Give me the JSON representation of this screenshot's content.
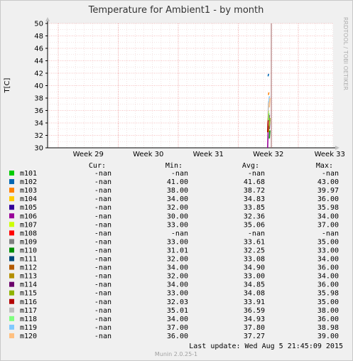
{
  "chart_data": {
    "type": "line",
    "title": "Temperature for Ambient1 - by month",
    "ylabel": "T[C]",
    "xlabel": "",
    "ylim": [
      30,
      50
    ],
    "yticks": [
      "30",
      "32",
      "34",
      "36",
      "38",
      "40",
      "42",
      "44",
      "46",
      "48",
      "50"
    ],
    "x_ticks": [
      "Week 29",
      "Week 30",
      "Week 31",
      "Week 32",
      "Week 33"
    ],
    "grid": true,
    "current_marker": "now",
    "watermark": "RRDTOOL / TOBI OETIKER",
    "legend_headers": [
      "Cur:",
      "Min:",
      "Avg:",
      "Max:"
    ],
    "series": [
      {
        "name": "m101",
        "color": "#00cc00",
        "cur": "-nan",
        "min": "-nan",
        "avg": "-nan",
        "max": "-nan",
        "values": []
      },
      {
        "name": "m102",
        "color": "#0066b3",
        "cur": "-nan",
        "min": "41.00",
        "avg": "41.68",
        "max": "43.00",
        "values": [
          41.5,
          41.7,
          41.9
        ]
      },
      {
        "name": "m103",
        "color": "#ff8000",
        "cur": "-nan",
        "min": "38.00",
        "avg": "38.72",
        "max": "39.97",
        "values": [
          38.5,
          38.8,
          38.9
        ]
      },
      {
        "name": "m104",
        "color": "#ffcc00",
        "cur": "-nan",
        "min": "34.00",
        "avg": "34.83",
        "max": "36.00",
        "values": [
          34.5,
          34.8,
          35.0
        ]
      },
      {
        "name": "m105",
        "color": "#330099",
        "cur": "-nan",
        "min": "32.00",
        "avg": "33.85",
        "max": "35.98",
        "values": [
          33.0,
          34.0,
          34.5
        ]
      },
      {
        "name": "m106",
        "color": "#990099",
        "cur": "-nan",
        "min": "30.00",
        "avg": "32.36",
        "max": "34.00",
        "values": [
          30.0,
          31.5,
          33.0
        ]
      },
      {
        "name": "m107",
        "color": "#ccff00",
        "cur": "-nan",
        "min": "33.00",
        "avg": "35.06",
        "max": "37.00",
        "values": [
          34.0,
          35.0,
          36.0
        ]
      },
      {
        "name": "m108",
        "color": "#ff0000",
        "cur": "-nan",
        "min": "-nan",
        "avg": "-nan",
        "max": "-nan",
        "values": []
      },
      {
        "name": "m109",
        "color": "#808080",
        "cur": "-nan",
        "min": "33.00",
        "avg": "33.61",
        "max": "35.00",
        "values": [
          33.2,
          33.6,
          34.0
        ]
      },
      {
        "name": "m110",
        "color": "#008f00",
        "cur": "-nan",
        "min": "31.01",
        "avg": "32.25",
        "max": "33.00",
        "values": [
          31.5,
          32.2,
          32.8
        ]
      },
      {
        "name": "m111",
        "color": "#00487d",
        "cur": "-nan",
        "min": "32.00",
        "avg": "33.08",
        "max": "34.00",
        "values": [
          32.5,
          33.0,
          33.5
        ]
      },
      {
        "name": "m112",
        "color": "#b35a00",
        "cur": "-nan",
        "min": "34.00",
        "avg": "34.90",
        "max": "36.00",
        "values": [
          34.5,
          34.9,
          35.5
        ]
      },
      {
        "name": "m113",
        "color": "#b38f00",
        "cur": "-nan",
        "min": "32.00",
        "avg": "33.00",
        "max": "34.00",
        "values": [
          32.5,
          33.0,
          33.5
        ]
      },
      {
        "name": "m114",
        "color": "#6b006b",
        "cur": "-nan",
        "min": "34.00",
        "avg": "34.85",
        "max": "36.00",
        "values": [
          34.3,
          34.8,
          35.3
        ]
      },
      {
        "name": "m115",
        "color": "#8fb300",
        "cur": "-nan",
        "min": "33.00",
        "avg": "34.08",
        "max": "35.98",
        "values": [
          33.5,
          34.0,
          34.8
        ]
      },
      {
        "name": "m116",
        "color": "#b30000",
        "cur": "-nan",
        "min": "32.03",
        "avg": "33.91",
        "max": "35.00",
        "values": [
          32.5,
          33.8,
          34.5
        ]
      },
      {
        "name": "m117",
        "color": "#bebebe",
        "cur": "-nan",
        "min": "35.01",
        "avg": "36.59",
        "max": "38.00",
        "values": [
          35.5,
          36.5,
          37.5
        ]
      },
      {
        "name": "m118",
        "color": "#80ff80",
        "cur": "-nan",
        "min": "34.00",
        "avg": "34.93",
        "max": "36.00",
        "values": [
          34.4,
          34.9,
          35.6
        ]
      },
      {
        "name": "m119",
        "color": "#80c9ff",
        "cur": "-nan",
        "min": "37.00",
        "avg": "37.80",
        "max": "38.98",
        "values": [
          37.3,
          37.8,
          38.3
        ]
      },
      {
        "name": "m120",
        "color": "#ffc080",
        "cur": "-nan",
        "min": "36.00",
        "avg": "37.27",
        "max": "39.00",
        "values": [
          36.5,
          37.2,
          38.0
        ]
      }
    ],
    "footer": "Last update: Wed Aug  5 21:45:09 2015",
    "version": "Munin 2.0.25-1"
  }
}
